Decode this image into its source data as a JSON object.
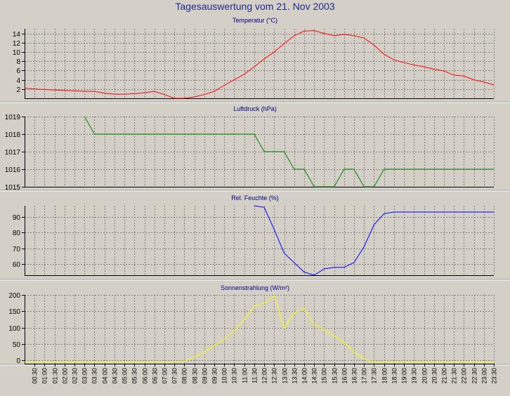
{
  "title": "Tagesauswertung vom 21. Nov 2003",
  "colors": {
    "background": "#d4d0c8",
    "title": "#1e2a8c",
    "temperature": "#ff0000",
    "pressure": "#008000",
    "humidity": "#0000ff",
    "radiation": "#ffff00",
    "grid": "#808080"
  },
  "x_ticks": [
    "00:30",
    "01:00",
    "01:30",
    "02:00",
    "02:30",
    "03:00",
    "03:30",
    "04:00",
    "04:30",
    "05:00",
    "05:30",
    "06:00",
    "06:30",
    "07:00",
    "07:30",
    "08:00",
    "08:30",
    "09:00",
    "09:30",
    "10:00",
    "10:30",
    "11:00",
    "11:30",
    "12:00",
    "12:30",
    "13:00",
    "13:30",
    "14:00",
    "14:30",
    "15:00",
    "15:30",
    "16:00",
    "16:30",
    "17:00",
    "17:30",
    "18:00",
    "18:30",
    "19:00",
    "19:30",
    "20:00",
    "20:30",
    "21:00",
    "21:30",
    "22:00",
    "22:30",
    "23:00",
    "23:30"
  ],
  "chart_data": [
    {
      "type": "line",
      "title": "Temperatur (°C)",
      "ylim": [
        0,
        15
      ],
      "yticks": [
        2,
        4,
        6,
        8,
        10,
        12,
        14
      ],
      "grid": true,
      "series": [
        {
          "color": "#ff0000",
          "x": [
            0,
            0.5,
            1,
            1.5,
            2,
            2.5,
            3,
            3.5,
            4,
            4.5,
            5,
            5.5,
            6,
            6.5,
            7,
            7.5,
            8,
            8.5,
            9,
            9.5,
            10,
            10.5,
            11,
            11.5,
            12,
            12.5,
            13,
            13.5,
            14,
            14.5,
            15,
            15.5,
            16,
            16.5,
            17,
            17.5,
            18,
            18.5,
            19,
            19.5,
            20,
            20.5,
            21,
            21.5,
            22,
            22.5,
            23,
            23.5
          ],
          "values": [
            2.2,
            2.0,
            1.9,
            1.8,
            1.7,
            1.6,
            1.5,
            1.5,
            1.1,
            0.9,
            0.9,
            1.0,
            1.2,
            1.5,
            0.8,
            0,
            0,
            0.3,
            0.8,
            1.5,
            2.8,
            4.0,
            5.2,
            6.8,
            8.5,
            10.0,
            11.8,
            13.5,
            14.5,
            14.6,
            14.0,
            13.5,
            13.8,
            13.5,
            13.0,
            11.5,
            9.5,
            8.3,
            7.7,
            7.2,
            6.8,
            6.3,
            5.9,
            5.0,
            4.8,
            4.0,
            3.5,
            2.9
          ]
        }
      ]
    },
    {
      "type": "line",
      "title": "Luftdruck (hPa)",
      "ylim": [
        1015,
        1019
      ],
      "yticks": [
        1015,
        1016,
        1017,
        1018,
        1019
      ],
      "grid": true,
      "series": [
        {
          "color": "#008000",
          "x": [
            3.0,
            3.5,
            4.0,
            11.5,
            12.0,
            12.5,
            13.0,
            13.5,
            14.0,
            14.5,
            15.0,
            15.5,
            16.0,
            16.5,
            17.0,
            17.5,
            18.0,
            23.5
          ],
          "values": [
            1019,
            1018,
            1018,
            1018,
            1017,
            1017,
            1017,
            1016,
            1016,
            1015,
            1015,
            1015,
            1016,
            1016,
            1015,
            1015,
            1016,
            1016
          ]
        }
      ]
    },
    {
      "type": "line",
      "title": "Rel. Feuchte (%)",
      "ylim": [
        53,
        97
      ],
      "yticks": [
        60,
        70,
        80,
        90
      ],
      "grid": true,
      "series": [
        {
          "color": "#0000ff",
          "x": [
            11.5,
            12.0,
            12.5,
            13.0,
            13.5,
            14.0,
            14.5,
            15.0,
            15.5,
            16.0,
            16.5,
            17.0,
            17.5,
            18.0,
            18.5,
            19.0,
            23.5
          ],
          "values": [
            97,
            96,
            82,
            67,
            61,
            55,
            53,
            57,
            58,
            58,
            61,
            71,
            85,
            92,
            93,
            93,
            93
          ]
        }
      ]
    },
    {
      "type": "line",
      "title": "Sonnenstrahlung (W/m²)",
      "ylim": [
        -10,
        200
      ],
      "yticks": [
        0,
        50,
        100,
        150,
        200
      ],
      "grid": true,
      "series": [
        {
          "color": "#ffff00",
          "x": [
            0,
            6.0,
            7.5,
            8.0,
            8.5,
            9.0,
            9.5,
            10.0,
            10.5,
            11.0,
            11.5,
            12.0,
            12.5,
            13.0,
            13.5,
            14.0,
            14.5,
            15.0,
            15.5,
            16.0,
            16.5,
            17.0,
            17.5,
            23.5
          ],
          "values": [
            -5,
            -5,
            -5,
            -2,
            10,
            25,
            45,
            65,
            90,
            125,
            165,
            175,
            198,
            98,
            145,
            160,
            108,
            95,
            75,
            55,
            25,
            5,
            -5,
            -5
          ]
        }
      ]
    }
  ]
}
